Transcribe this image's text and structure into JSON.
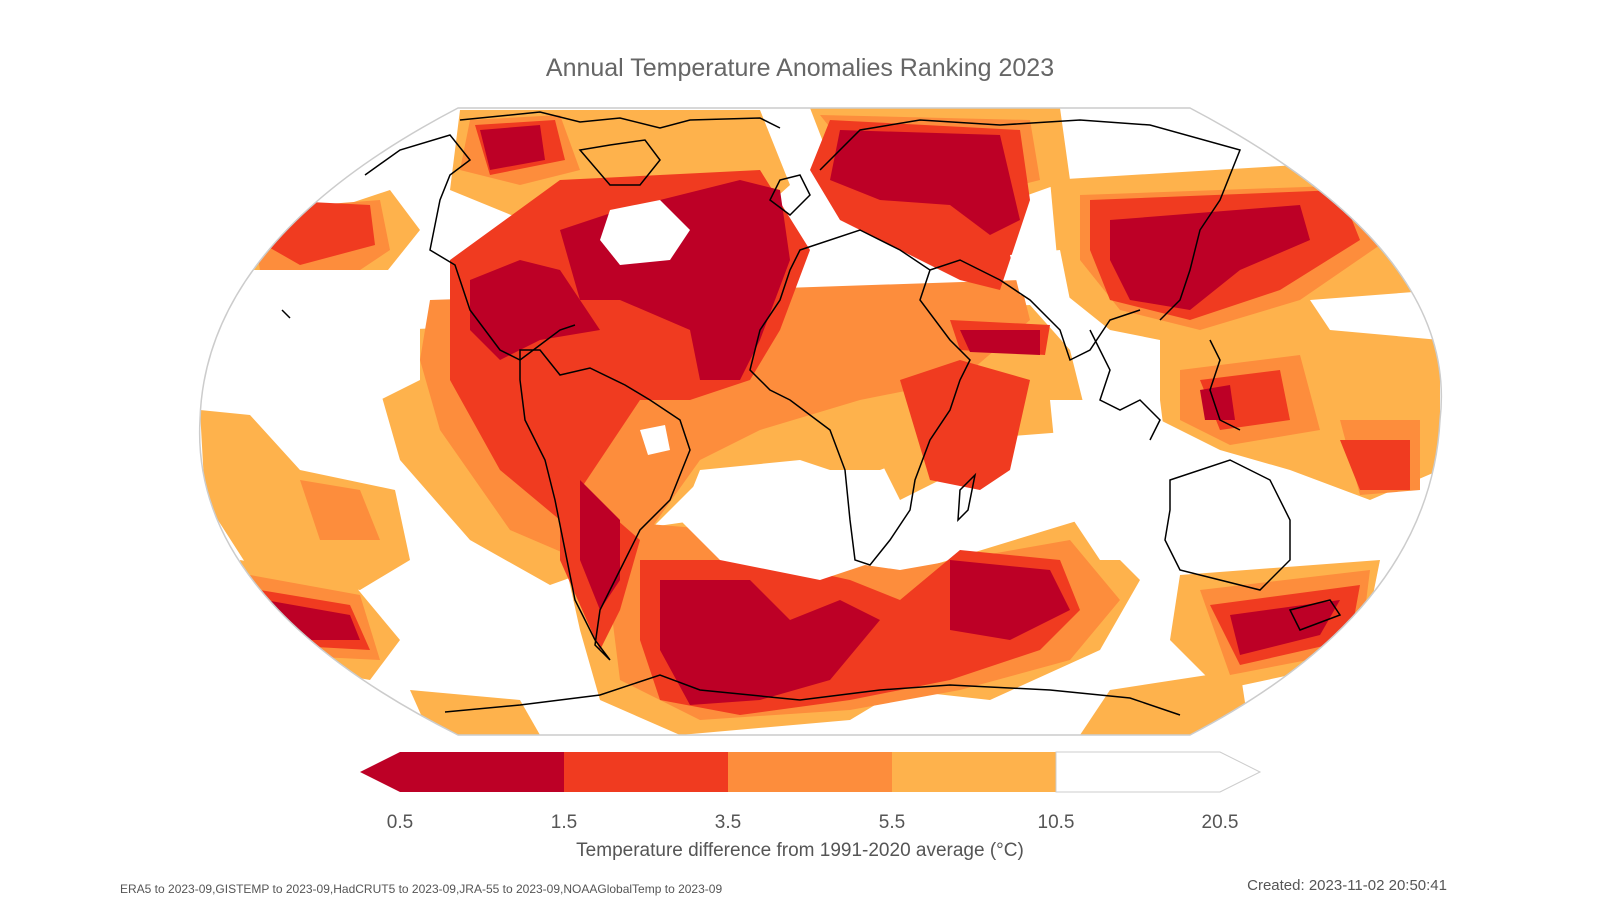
{
  "title": "Annual Temperature Anomalies Ranking 2023",
  "colorbar": {
    "label": "Temperature difference from 1991-2020 average (°C)",
    "ticks": [
      "0.5",
      "1.5",
      "3.5",
      "5.5",
      "10.5",
      "20.5"
    ],
    "colors": [
      "#bd0026",
      "#f03b20",
      "#fd8d3c",
      "#feb24c",
      "#ffffff"
    ]
  },
  "footer": {
    "sources": "ERA5 to 2023-09,GISTEMP to 2023-09,HadCRUT5 to 2023-09,JRA-55 to 2023-09,NOAAGlobalTemp to 2023-09",
    "created": "Created: 2023-11-02 20:50:41"
  }
}
